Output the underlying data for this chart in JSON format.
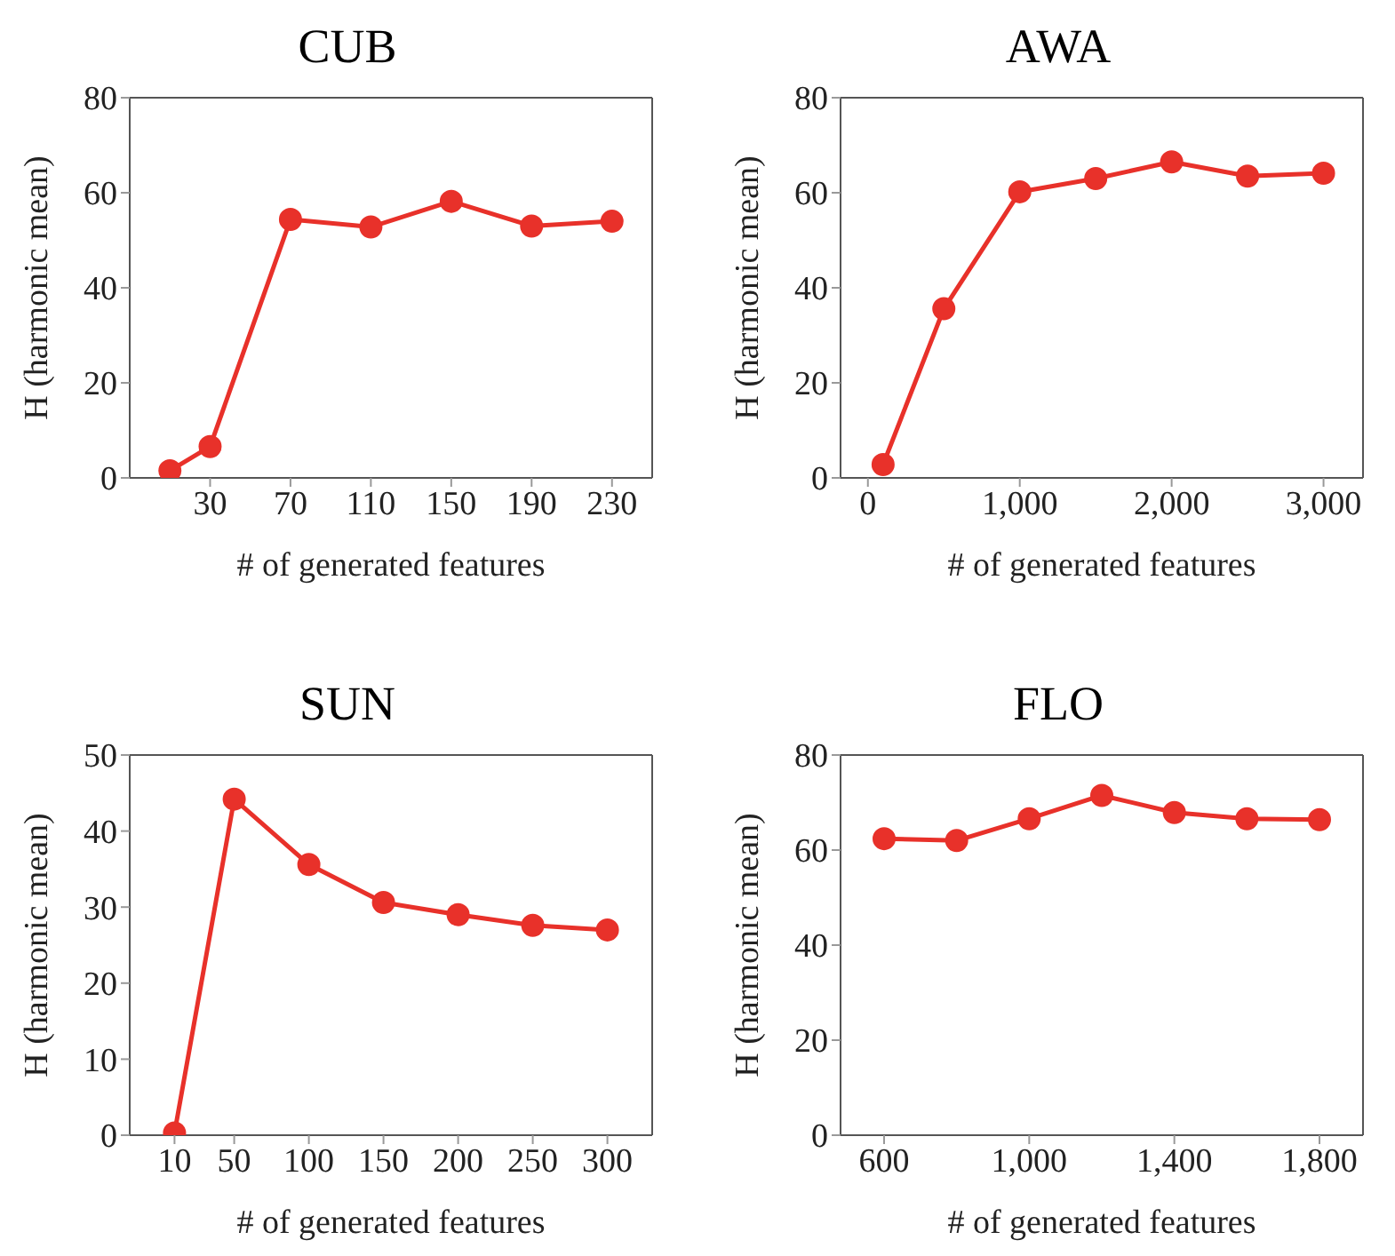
{
  "chart_data": [
    {
      "type": "line",
      "title": "CUB",
      "xlabel": "# of generated features",
      "ylabel": "H (harmonic mean)",
      "x": [
        10,
        30,
        70,
        110,
        150,
        190,
        230
      ],
      "series": [
        {
          "color": "#e8312a",
          "values": [
            1.5,
            6.6,
            54.4,
            52.8,
            58.2,
            53.0,
            54.0
          ]
        }
      ],
      "xlim": [
        -10,
        250
      ],
      "xticks": [
        30,
        70,
        110,
        150,
        190,
        230
      ],
      "ylim": [
        0,
        80
      ],
      "yticks": [
        0,
        20,
        40,
        60,
        80
      ],
      "marker": "circle",
      "line_style": "solid",
      "grid": false
    },
    {
      "type": "line",
      "title": "AWA",
      "xlabel": "# of generated features",
      "ylabel": "H (harmonic mean)",
      "x": [
        100,
        500,
        1000,
        1500,
        2000,
        2500,
        3000
      ],
      "series": [
        {
          "color": "#e8312a",
          "values": [
            2.8,
            35.6,
            60.2,
            63.0,
            66.5,
            63.5,
            64.1
          ]
        }
      ],
      "xlim": [
        -180,
        3260
      ],
      "xticks": [
        0,
        {
          "value": 1000,
          "label": "1,000"
        },
        {
          "value": 2000,
          "label": "2,000"
        },
        {
          "value": 3000,
          "label": "3,000"
        }
      ],
      "ylim": [
        0,
        80
      ],
      "yticks": [
        0,
        20,
        40,
        60,
        80
      ],
      "marker": "circle",
      "line_style": "solid",
      "grid": false
    },
    {
      "type": "line",
      "title": "SUN",
      "xlabel": "# of generated features",
      "ylabel": "H (harmonic mean)",
      "x": [
        10,
        50,
        100,
        150,
        200,
        250,
        300
      ],
      "series": [
        {
          "color": "#e8312a",
          "values": [
            0.3,
            44.2,
            35.6,
            30.6,
            29.0,
            27.6,
            27.0
          ]
        }
      ],
      "xlim": [
        -20,
        330
      ],
      "xticks": [
        10,
        50,
        100,
        150,
        200,
        250,
        300
      ],
      "ylim": [
        0,
        50
      ],
      "yticks": [
        0,
        10,
        20,
        30,
        40,
        50
      ],
      "marker": "circle",
      "line_style": "solid",
      "grid": false
    },
    {
      "type": "line",
      "title": "FLO",
      "xlabel": "# of generated features",
      "ylabel": "H (harmonic mean)",
      "x": [
        600,
        800,
        1000,
        1200,
        1400,
        1600,
        1800
      ],
      "series": [
        {
          "color": "#e8312a",
          "values": [
            62.4,
            62.0,
            66.6,
            71.5,
            67.9,
            66.6,
            66.4
          ]
        }
      ],
      "xlim": [
        480,
        1920
      ],
      "xticks": [
        600,
        {
          "value": 1000,
          "label": "1,000"
        },
        {
          "value": 1400,
          "label": "1,400"
        },
        {
          "value": 1800,
          "label": "1,800"
        }
      ],
      "ylim": [
        0,
        80
      ],
      "yticks": [
        0,
        20,
        40,
        60,
        80
      ],
      "marker": "circle",
      "line_style": "solid",
      "grid": false
    }
  ]
}
